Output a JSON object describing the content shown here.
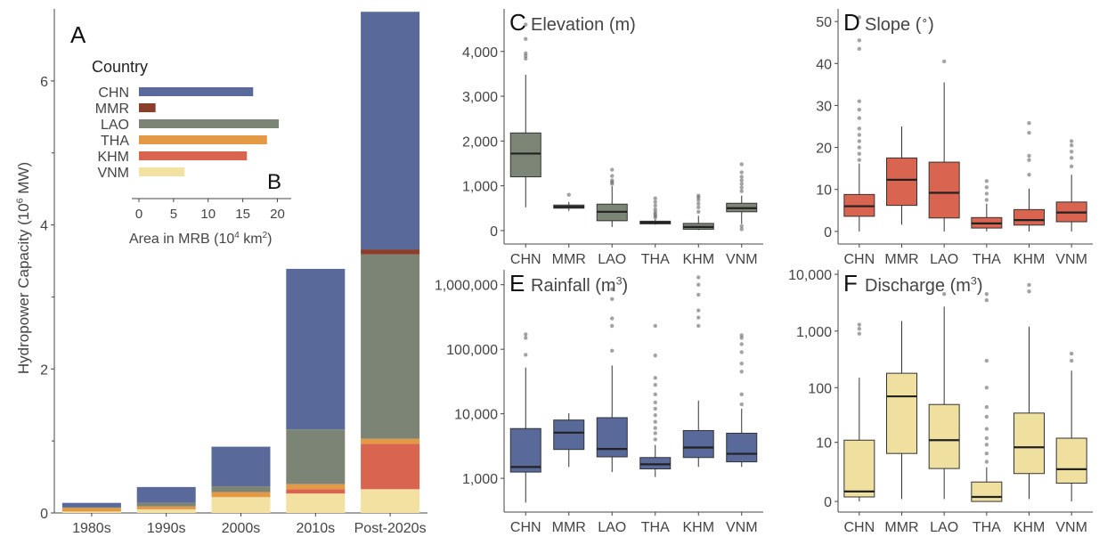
{
  "colors": {
    "CHN": "#58699a",
    "MMR": "#8a3f2c",
    "LAO": "#7c8575",
    "THA": "#e49a45",
    "KHM": "#d96450",
    "VNM": "#f2e1a1",
    "elev_box": "#7c8676",
    "slope_box": "#d96450",
    "rain_box": "#58699a",
    "dis_box": "#efe0a0"
  },
  "chart_data": [
    {
      "panel": "A",
      "type": "bar",
      "stacked": true,
      "categories": [
        "1980s",
        "1990s",
        "2000s",
        "2010s",
        "Post-2020s"
      ],
      "ylabel": "Hydropower Capacity (10",
      "ylabel_sup": "6",
      "ylabel_end": " MW)",
      "ylim": [
        0,
        7
      ],
      "yticks": [
        0,
        2,
        4,
        6
      ],
      "series": [
        {
          "name": "VNM",
          "values": [
            0.02,
            0.05,
            0.22,
            0.27,
            0.33
          ]
        },
        {
          "name": "KHM",
          "values": [
            0.0,
            0.0,
            0.0,
            0.06,
            0.63
          ]
        },
        {
          "name": "THA",
          "values": [
            0.05,
            0.04,
            0.07,
            0.07,
            0.07
          ]
        },
        {
          "name": "LAO",
          "values": [
            0.01,
            0.05,
            0.08,
            0.76,
            2.56
          ]
        },
        {
          "name": "MMR",
          "values": [
            0.0,
            0.0,
            0.0,
            0.0,
            0.07
          ]
        },
        {
          "name": "CHN",
          "values": [
            0.06,
            0.22,
            0.55,
            2.23,
            3.3
          ]
        }
      ]
    },
    {
      "panel": "B",
      "type": "bar",
      "orientation": "horizontal",
      "legend_title": "Country",
      "xlabel": "Area in MRB (10",
      "xlabel_sup": "4",
      "xlabel_unit": " km",
      "xlabel_unit_sup": "2",
      "xlabel_end": ")",
      "xlim": [
        0,
        22
      ],
      "xticks": [
        0,
        5,
        10,
        15,
        20
      ],
      "categories": [
        "CHN",
        "MMR",
        "LAO",
        "THA",
        "KHM",
        "VNM"
      ],
      "values": [
        16.5,
        2.4,
        20.2,
        18.5,
        15.6,
        6.6
      ]
    },
    {
      "panel": "C",
      "type": "box",
      "title": "Elevation (m)",
      "categories": [
        "CHN",
        "MMR",
        "LAO",
        "THA",
        "KHM",
        "VNM"
      ],
      "yticks": [
        0,
        1000,
        2000,
        3000,
        4000
      ],
      "yticklabels": [
        "0",
        "1,000",
        "2,000",
        "3,000",
        "4,000"
      ],
      "boxes": [
        {
          "min": 520,
          "q1": 1200,
          "median": 1720,
          "q3": 2180,
          "max": 3480,
          "outliers": [
            3840,
            3900,
            3960,
            4280,
            4600
          ]
        },
        {
          "min": 440,
          "q1": 500,
          "median": 530,
          "q3": 570,
          "max": 640,
          "outliers": [
            800
          ]
        },
        {
          "min": 80,
          "q1": 220,
          "median": 420,
          "q3": 590,
          "max": 990,
          "outliers": [
            1040,
            1080,
            1120,
            1220,
            1360
          ]
        },
        {
          "min": 130,
          "q1": 150,
          "median": 180,
          "q3": 210,
          "max": 250,
          "outliers": [
            290,
            330,
            370,
            420,
            480,
            560,
            640,
            720
          ]
        },
        {
          "min": 10,
          "q1": 30,
          "median": 80,
          "q3": 160,
          "max": 330,
          "outliers": [
            420,
            520,
            600,
            680,
            740,
            780
          ]
        },
        {
          "min": 150,
          "q1": 420,
          "median": 500,
          "q3": 610,
          "max": 780,
          "outliers": [
            880,
            960,
            1040,
            1120,
            1200,
            1300,
            1480,
            100,
            30
          ]
        }
      ]
    },
    {
      "panel": "D",
      "type": "box",
      "title": "Slope (",
      "title_sup": "∘",
      "title_end": ")",
      "categories": [
        "CHN",
        "MMR",
        "LAO",
        "THA",
        "KHM",
        "VNM"
      ],
      "yticks": [
        0,
        10,
        20,
        30,
        40,
        50
      ],
      "yticklabels": [
        "0",
        "10",
        "20",
        "30",
        "40",
        "50"
      ],
      "boxes": [
        {
          "min": 0,
          "q1": 3.6,
          "median": 6,
          "q3": 8.8,
          "max": 16.2,
          "outliers": [
            17,
            18.5,
            20,
            21.5,
            23,
            24.5,
            27,
            29,
            31,
            43.5,
            45.5,
            51
          ]
        },
        {
          "min": 1.6,
          "q1": 6.2,
          "median": 12.3,
          "q3": 17.5,
          "max": 25,
          "outliers": []
        },
        {
          "min": 0,
          "q1": 3.2,
          "median": 9.2,
          "q3": 16.5,
          "max": 35.5,
          "outliers": [
            40.5
          ]
        },
        {
          "min": 0,
          "q1": 0.8,
          "median": 1.9,
          "q3": 3.3,
          "max": 6.6,
          "outliers": [
            7.5,
            9,
            10.5,
            12
          ]
        },
        {
          "min": 0,
          "q1": 1.5,
          "median": 2.7,
          "q3": 5.2,
          "max": 10.2,
          "outliers": [
            13.5,
            17,
            18,
            23.5,
            25.8
          ]
        },
        {
          "min": 0,
          "q1": 2.3,
          "median": 4.5,
          "q3": 7,
          "max": 13.5,
          "outliers": [
            15.5,
            17.5,
            19,
            20.5,
            21.5
          ]
        }
      ]
    },
    {
      "panel": "E",
      "type": "box",
      "scale": "log",
      "title": "Rainfall (m",
      "title_sup": "3",
      "title_end": ")",
      "categories": [
        "CHN",
        "MMR",
        "LAO",
        "THA",
        "KHM",
        "VNM"
      ],
      "yticks": [
        1000,
        10000,
        100000,
        1000000
      ],
      "yticklabels": [
        "1,000",
        "10,000",
        "100,000",
        "1,000,000"
      ],
      "boxes": [
        {
          "min": 420,
          "q1": 1250,
          "median": 1500,
          "q3": 5900,
          "max": 52000,
          "outliers": [
            82000,
            150000,
            170000
          ]
        },
        {
          "min": 1500,
          "q1": 2800,
          "median": 5100,
          "q3": 8000,
          "max": 10200,
          "outliers": []
        },
        {
          "min": 1250,
          "q1": 2150,
          "median": 2850,
          "q3": 8700,
          "max": 56000,
          "outliers": [
            95000,
            230000,
            300000,
            600000,
            850000
          ]
        },
        {
          "min": 1050,
          "q1": 1400,
          "median": 1650,
          "q3": 2100,
          "max": 3300,
          "outliers": [
            4000,
            5000,
            6000,
            7500,
            9500,
            12000,
            15000,
            20000,
            28000,
            36000,
            80000,
            230000
          ]
        },
        {
          "min": 1500,
          "q1": 2100,
          "median": 3000,
          "q3": 5500,
          "max": 16000,
          "outliers": [
            230000,
            310000,
            400000,
            700000,
            1000000,
            1300000
          ]
        },
        {
          "min": 1500,
          "q1": 1800,
          "median": 2400,
          "q3": 5000,
          "max": 12000,
          "outliers": [
            14000,
            20000,
            45000,
            60000,
            90000,
            120000,
            150000,
            165000
          ]
        }
      ]
    },
    {
      "panel": "F",
      "type": "box",
      "scale": "log1p",
      "title": "Discharge (m",
      "title_sup": "3",
      "title_end": ")",
      "categories": [
        "CHN",
        "MMR",
        "LAO",
        "THA",
        "KHM",
        "VNM"
      ],
      "yticks": [
        0,
        10,
        100,
        1000,
        10000
      ],
      "yticklabels": [
        "0",
        "10",
        "100",
        "1,000",
        "10,000"
      ],
      "boxes": [
        {
          "min": 0,
          "q1": 0.2,
          "median": 0.5,
          "q3": 11,
          "max": 150,
          "outliers": [
            900,
            1100,
            1300
          ]
        },
        {
          "min": 0.1,
          "q1": 6,
          "median": 70,
          "q3": 180,
          "max": 1500,
          "outliers": []
        },
        {
          "min": 0.1,
          "q1": 2.8,
          "median": 11,
          "q3": 50,
          "max": 2700,
          "outliers": [
            4500
          ]
        },
        {
          "min": 0,
          "q1": 0,
          "median": 0.2,
          "q3": 1.2,
          "max": 3,
          "outliers": [
            4,
            6,
            9,
            12,
            18,
            30,
            45,
            100,
            300,
            3500,
            4500
          ]
        },
        {
          "min": 0.1,
          "q1": 2.1,
          "median": 8,
          "q3": 35,
          "max": 1200,
          "outliers": [
            5000,
            6500
          ]
        },
        {
          "min": 0,
          "q1": 1.1,
          "median": 2.7,
          "q3": 12,
          "max": 200,
          "outliers": [
            300,
            400
          ]
        }
      ]
    }
  ],
  "panel_letters": {
    "A": "A",
    "B": "B",
    "C": "C",
    "D": "D",
    "E": "E",
    "F": "F"
  }
}
